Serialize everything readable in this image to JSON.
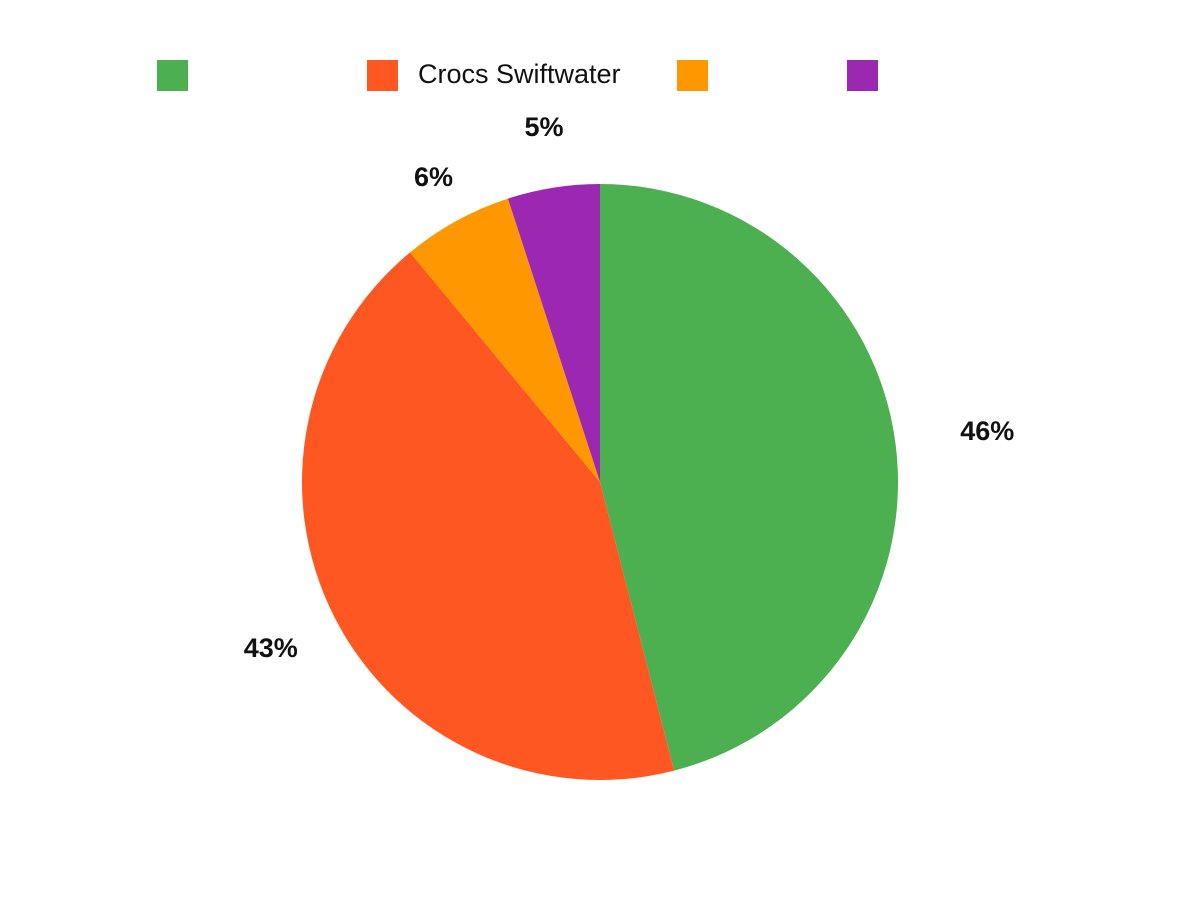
{
  "chart_data": {
    "type": "pie",
    "categories": [
      null,
      "Crocs Swiftwater",
      null,
      null
    ],
    "values": [
      46,
      43,
      6,
      5
    ],
    "value_labels": [
      "46%",
      "43%",
      "6%",
      "5%"
    ],
    "colors": [
      "#4caf50",
      "#ff5722",
      "#ff9800",
      "#9c27b0"
    ],
    "legend": "top"
  }
}
